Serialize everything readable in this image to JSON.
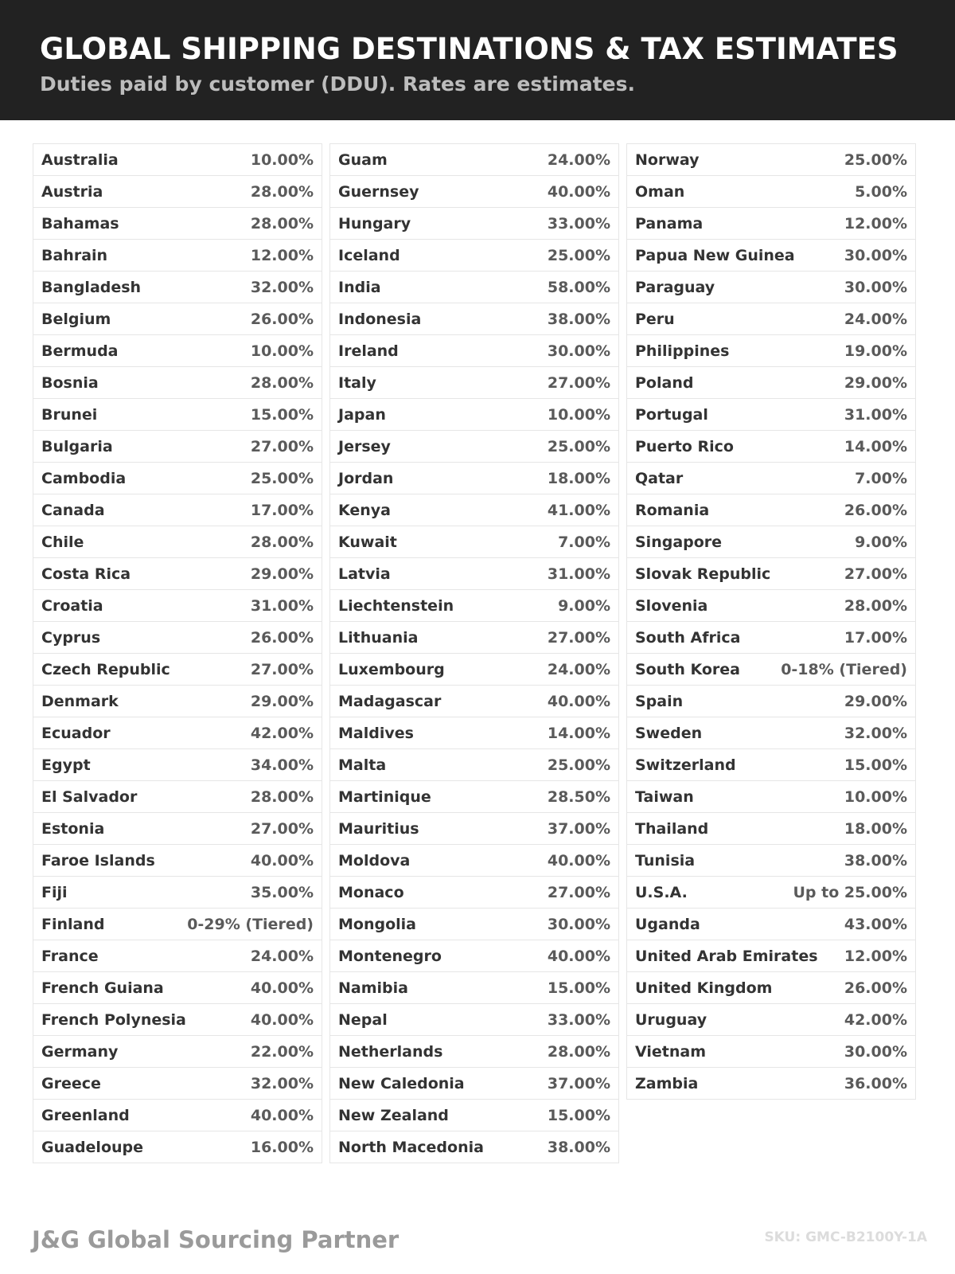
{
  "header": {
    "title": "GLOBAL SHIPPING DESTINATIONS & TAX ESTIMATES",
    "subtitle": "Duties paid by customer (DDU). Rates are estimates."
  },
  "columns": [
    [
      [
        "Australia",
        "10.00%"
      ],
      [
        "Austria",
        "28.00%"
      ],
      [
        "Bahamas",
        "28.00%"
      ],
      [
        "Bahrain",
        "12.00%"
      ],
      [
        "Bangladesh",
        "32.00%"
      ],
      [
        "Belgium",
        "26.00%"
      ],
      [
        "Bermuda",
        "10.00%"
      ],
      [
        "Bosnia",
        "28.00%"
      ],
      [
        "Brunei",
        "15.00%"
      ],
      [
        "Bulgaria",
        "27.00%"
      ],
      [
        "Cambodia",
        "25.00%"
      ],
      [
        "Canada",
        "17.00%"
      ],
      [
        "Chile",
        "28.00%"
      ],
      [
        "Costa Rica",
        "29.00%"
      ],
      [
        "Croatia",
        "31.00%"
      ],
      [
        "Cyprus",
        "26.00%"
      ],
      [
        "Czech Republic",
        "27.00%"
      ],
      [
        "Denmark",
        "29.00%"
      ],
      [
        "Ecuador",
        "42.00%"
      ],
      [
        "Egypt",
        "34.00%"
      ],
      [
        "El Salvador",
        "28.00%"
      ],
      [
        "Estonia",
        "27.00%"
      ],
      [
        "Faroe Islands",
        "40.00%"
      ],
      [
        "Fiji",
        "35.00%"
      ],
      [
        "Finland",
        "0-29% (Tiered)"
      ],
      [
        "France",
        "24.00%"
      ],
      [
        "French Guiana",
        "40.00%"
      ],
      [
        "French Polynesia",
        "40.00%"
      ],
      [
        "Germany",
        "22.00%"
      ],
      [
        "Greece",
        "32.00%"
      ],
      [
        "Greenland",
        "40.00%"
      ],
      [
        "Guadeloupe",
        "16.00%"
      ]
    ],
    [
      [
        "Guam",
        "24.00%"
      ],
      [
        "Guernsey",
        "40.00%"
      ],
      [
        "Hungary",
        "33.00%"
      ],
      [
        "Iceland",
        "25.00%"
      ],
      [
        "India",
        "58.00%"
      ],
      [
        "Indonesia",
        "38.00%"
      ],
      [
        "Ireland",
        "30.00%"
      ],
      [
        "Italy",
        "27.00%"
      ],
      [
        "Japan",
        "10.00%"
      ],
      [
        "Jersey",
        "25.00%"
      ],
      [
        "Jordan",
        "18.00%"
      ],
      [
        "Kenya",
        "41.00%"
      ],
      [
        "Kuwait",
        "7.00%"
      ],
      [
        "Latvia",
        "31.00%"
      ],
      [
        "Liechtenstein",
        "9.00%"
      ],
      [
        "Lithuania",
        "27.00%"
      ],
      [
        "Luxembourg",
        "24.00%"
      ],
      [
        "Madagascar",
        "40.00%"
      ],
      [
        "Maldives",
        "14.00%"
      ],
      [
        "Malta",
        "25.00%"
      ],
      [
        "Martinique",
        "28.50%"
      ],
      [
        "Mauritius",
        "37.00%"
      ],
      [
        "Moldova",
        "40.00%"
      ],
      [
        "Monaco",
        "27.00%"
      ],
      [
        "Mongolia",
        "30.00%"
      ],
      [
        "Montenegro",
        "40.00%"
      ],
      [
        "Namibia",
        "15.00%"
      ],
      [
        "Nepal",
        "33.00%"
      ],
      [
        "Netherlands",
        "28.00%"
      ],
      [
        "New Caledonia",
        "37.00%"
      ],
      [
        "New Zealand",
        "15.00%"
      ],
      [
        "North Macedonia",
        "38.00%"
      ]
    ],
    [
      [
        "Norway",
        "25.00%"
      ],
      [
        "Oman",
        "5.00%"
      ],
      [
        "Panama",
        "12.00%"
      ],
      [
        "Papua New Guinea",
        "30.00%"
      ],
      [
        "Paraguay",
        "30.00%"
      ],
      [
        "Peru",
        "24.00%"
      ],
      [
        "Philippines",
        "19.00%"
      ],
      [
        "Poland",
        "29.00%"
      ],
      [
        "Portugal",
        "31.00%"
      ],
      [
        "Puerto Rico",
        "14.00%"
      ],
      [
        "Qatar",
        "7.00%"
      ],
      [
        "Romania",
        "26.00%"
      ],
      [
        "Singapore",
        "9.00%"
      ],
      [
        "Slovak Republic",
        "27.00%"
      ],
      [
        "Slovenia",
        "28.00%"
      ],
      [
        "South Africa",
        "17.00%"
      ],
      [
        "South Korea",
        "0-18% (Tiered)"
      ],
      [
        "Spain",
        "29.00%"
      ],
      [
        "Sweden",
        "32.00%"
      ],
      [
        "Switzerland",
        "15.00%"
      ],
      [
        "Taiwan",
        "10.00%"
      ],
      [
        "Thailand",
        "18.00%"
      ],
      [
        "Tunisia",
        "38.00%"
      ],
      [
        "U.S.A.",
        "Up to 25.00%"
      ],
      [
        "Uganda",
        "43.00%"
      ],
      [
        "United Arab Emirates",
        "12.00%"
      ],
      [
        "United Kingdom",
        "26.00%"
      ],
      [
        "Uruguay",
        "42.00%"
      ],
      [
        "Vietnam",
        "30.00%"
      ],
      [
        "Zambia",
        "36.00%"
      ]
    ]
  ],
  "footer": {
    "brand": "J&G Global Sourcing Partner",
    "sku": "SKU: GMC-B2100Y-1A"
  },
  "colors": {
    "header_bg": "#222222",
    "title": "#ffffff",
    "subtitle": "#bdbdbd",
    "name": "#333333",
    "rate": "#5a5a5a",
    "border": "#e6e6e6"
  }
}
